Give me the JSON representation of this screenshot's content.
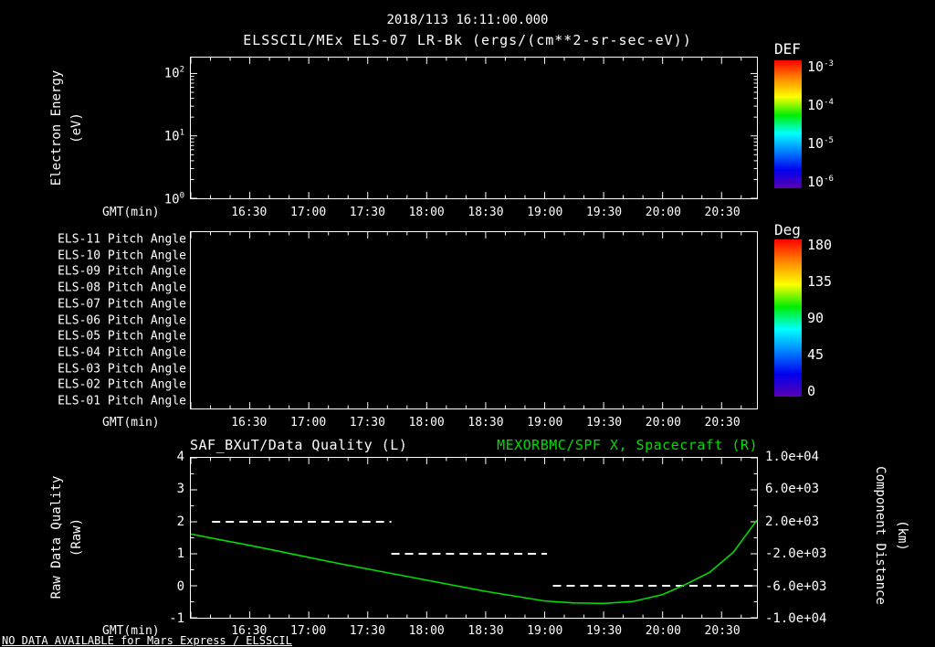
{
  "header": {
    "timestamp": "2018/113 16:11:00.000",
    "subtitle": "ELSSCIL/MEx ELS-07 LR-Bk  (ergs/(cm**2-sr-sec-eV))"
  },
  "footer": {
    "no_data_message": "NO DATA AVAILABLE for Mars Express / ELSSCIL"
  },
  "colors": {
    "background": "#000000",
    "foreground": "#ffffff",
    "green": "#00dd00",
    "colorbar_stops": [
      "#ff0000",
      "#ff8800",
      "#ffff00",
      "#00ee00",
      "#00ffff",
      "#0080ff",
      "#0000ee",
      "#5a00b0"
    ]
  },
  "axes": {
    "xlabel": "GMT(min)",
    "xticks": [
      "16:30",
      "17:00",
      "17:30",
      "18:00",
      "18:30",
      "19:00",
      "19:30",
      "20:00",
      "20:30"
    ],
    "x_range_hours": [
      16.0,
      20.8
    ]
  },
  "panel_energy": {
    "ylabel_line1": "Electron Energy",
    "ylabel_line2": "(eV)",
    "yticks": [
      {
        "base": "10",
        "exp": "2"
      },
      {
        "base": "10",
        "exp": "1"
      },
      {
        "base": "10",
        "exp": "0"
      }
    ],
    "colorbar": {
      "title": "DEF",
      "ticks": [
        {
          "base": "10",
          "exp": "-3"
        },
        {
          "base": "10",
          "exp": "-4"
        },
        {
          "base": "10",
          "exp": "-5"
        },
        {
          "base": "10",
          "exp": "-6"
        }
      ]
    }
  },
  "panel_pitch": {
    "row_labels": [
      "ELS-11 Pitch Angle",
      "ELS-10 Pitch Angle",
      "ELS-09 Pitch Angle",
      "ELS-08 Pitch Angle",
      "ELS-07 Pitch Angle",
      "ELS-06 Pitch Angle",
      "ELS-05 Pitch Angle",
      "ELS-04 Pitch Angle",
      "ELS-03 Pitch Angle",
      "ELS-02 Pitch Angle",
      "ELS-01 Pitch Angle"
    ],
    "colorbar": {
      "title": "Deg",
      "ticks": [
        "180",
        "135",
        "90",
        "45",
        "0"
      ]
    }
  },
  "panel_quality": {
    "title_left": "SAF_BXuT/Data Quality (L)",
    "title_right": "MEXORBMC/SPF X, Spacecraft (R)",
    "ylabel_left_line1": "Raw Data Quality",
    "ylabel_left_line2": "(Raw)",
    "ylabel_right_line1": "Component Distance",
    "ylabel_right_line2": "(km)",
    "yticks_left": [
      "4",
      "3",
      "2",
      "1",
      "0",
      "-1"
    ],
    "yticks_right": [
      "1.0e+04",
      "6.0e+03",
      "2.0e+03",
      "-2.0e+03",
      "-6.0e+03",
      "-1.0e+04"
    ]
  },
  "chart_data": [
    {
      "type": "heatmap",
      "title": "ELSSCIL/MEx ELS-07 LR-Bk",
      "units": "(ergs/(cm**2-sr-sec-eV))",
      "xlabel": "GMT(min)",
      "ylabel": "Electron Energy (eV)",
      "x_range_hours": [
        16.0,
        20.8
      ],
      "xticks": [
        "16:30",
        "17:00",
        "17:30",
        "18:00",
        "18:30",
        "19:00",
        "19:30",
        "20:00",
        "20:30"
      ],
      "y_scale": "log",
      "ylim": [
        1,
        180
      ],
      "yticks": [
        1,
        10,
        100
      ],
      "colorbar": {
        "label": "DEF",
        "scale": "log",
        "tick_values": [
          0.001,
          0.0001,
          1e-05,
          1e-06
        ]
      },
      "values": [],
      "note": "Empty panel - no data available"
    },
    {
      "type": "heatmap",
      "rows": [
        "ELS-11 Pitch Angle",
        "ELS-10 Pitch Angle",
        "ELS-09 Pitch Angle",
        "ELS-08 Pitch Angle",
        "ELS-07 Pitch Angle",
        "ELS-06 Pitch Angle",
        "ELS-05 Pitch Angle",
        "ELS-04 Pitch Angle",
        "ELS-03 Pitch Angle",
        "ELS-02 Pitch Angle",
        "ELS-01 Pitch Angle"
      ],
      "xlabel": "GMT(min)",
      "x_range_hours": [
        16.0,
        20.8
      ],
      "xticks": [
        "16:30",
        "17:00",
        "17:30",
        "18:00",
        "18:30",
        "19:00",
        "19:30",
        "20:00",
        "20:30"
      ],
      "colorbar": {
        "label": "Deg",
        "range": [
          0,
          180
        ],
        "tick_values": [
          180,
          135,
          90,
          45,
          0
        ]
      },
      "values": [],
      "note": "Empty panel - no data available"
    },
    {
      "type": "line",
      "title_left": "SAF_BXuT/Data Quality (L)",
      "title_right": "MEXORBMC/SPF X, Spacecraft (R)",
      "xlabel": "GMT(min)",
      "x_range_hours": [
        16.0,
        20.8
      ],
      "xticks": [
        "16:30",
        "17:00",
        "17:30",
        "18:00",
        "18:30",
        "19:00",
        "19:30",
        "20:00",
        "20:30"
      ],
      "ylabel_left": "Raw Data Quality (Raw)",
      "ylabel_right": "Component Distance (km)",
      "ylim_left": [
        -1,
        4
      ],
      "ylim_right": [
        -10000,
        10000
      ],
      "series": [
        {
          "name": "SAF_BXuT/Data Quality (L)",
          "axis": "left",
          "color": "#ffffff",
          "line_style": "dashed",
          "segments": [
            {
              "x_start_hours": 16.18,
              "x_end_hours": 17.7,
              "y": 2
            },
            {
              "x_start_hours": 17.7,
              "x_end_hours": 19.02,
              "y": 1
            },
            {
              "x_start_hours": 19.07,
              "x_end_hours": 20.78,
              "y": 0
            }
          ]
        },
        {
          "name": "MEXORBMC/SPF X, Spacecraft (R)",
          "axis": "right",
          "color": "#00dd00",
          "line_style": "solid",
          "x_hours": [
            16.0,
            16.25,
            16.5,
            16.75,
            17.0,
            17.25,
            17.5,
            17.75,
            18.0,
            18.25,
            18.5,
            18.75,
            19.0,
            19.25,
            19.5,
            19.75,
            20.0,
            20.2,
            20.4,
            20.6,
            20.8
          ],
          "km": [
            480,
            -250,
            -950,
            -1700,
            -2450,
            -3200,
            -3900,
            -4600,
            -5300,
            -6000,
            -6700,
            -7300,
            -7900,
            -8150,
            -8200,
            -7950,
            -7100,
            -5800,
            -4300,
            -1800,
            2200
          ]
        }
      ]
    }
  ]
}
